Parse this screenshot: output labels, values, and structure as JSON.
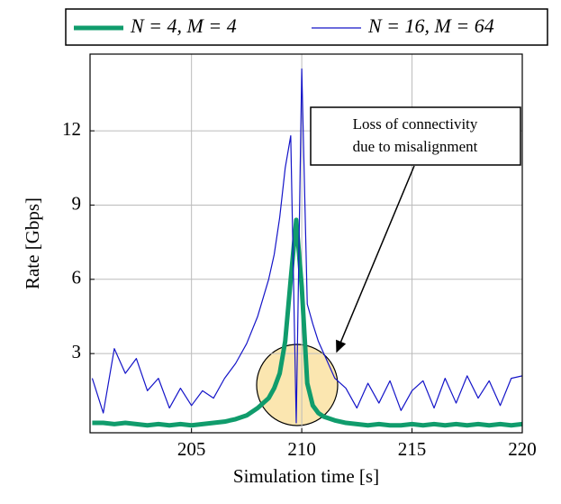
{
  "chart_data": {
    "type": "line",
    "x_label": "Simulation time [s]",
    "y_label": "Rate [Gbps]",
    "x": [
      200.5,
      201,
      201.5,
      202,
      202.5,
      203,
      203.5,
      204,
      204.5,
      205,
      205.5,
      206,
      206.5,
      207,
      207.5,
      208,
      208.5,
      208.75,
      209,
      209.25,
      209.5,
      209.75,
      210,
      210.25,
      210.5,
      210.75,
      211,
      211.5,
      212,
      212.5,
      213,
      213.5,
      214,
      214.5,
      215,
      215.5,
      216,
      216.5,
      217,
      217.5,
      218,
      218.5,
      219,
      219.5,
      220
    ],
    "series": [
      {
        "name": "N = 4, M = 4",
        "color": "#109c6c",
        "width": 5,
        "values": [
          0.2,
          0.2,
          0.15,
          0.2,
          0.15,
          0.1,
          0.15,
          0.1,
          0.15,
          0.1,
          0.15,
          0.2,
          0.25,
          0.35,
          0.5,
          0.8,
          1.2,
          1.6,
          2.2,
          3.5,
          6.0,
          8.4,
          5.7,
          1.8,
          0.9,
          0.6,
          0.45,
          0.3,
          0.2,
          0.15,
          0.1,
          0.15,
          0.1,
          0.1,
          0.15,
          0.1,
          0.15,
          0.1,
          0.15,
          0.1,
          0.15,
          0.1,
          0.15,
          0.1,
          0.15
        ]
      },
      {
        "name": "N = 16, M = 64",
        "color": "#1414c8",
        "width": 1.2,
        "values": [
          2.0,
          0.6,
          3.2,
          2.2,
          2.8,
          1.5,
          2.0,
          0.8,
          1.6,
          0.9,
          1.5,
          1.2,
          2.0,
          2.6,
          3.4,
          4.5,
          6.0,
          7.0,
          8.5,
          10.5,
          11.8,
          0.2,
          14.5,
          5.0,
          4.2,
          3.5,
          3.0,
          2.0,
          1.6,
          0.8,
          1.8,
          1.0,
          1.9,
          0.7,
          1.5,
          1.9,
          0.8,
          2.0,
          1.0,
          2.1,
          1.2,
          1.9,
          0.9,
          2.0,
          2.1
        ]
      }
    ],
    "xlim": [
      200.4,
      220
    ],
    "xticks": [
      205,
      210,
      215,
      220
    ],
    "ylim": [
      -0.2,
      15.1
    ],
    "yticks": [
      3,
      6,
      9,
      12
    ],
    "grid": true,
    "legend": "top",
    "annotation": {
      "lines": [
        "Loss of connectivity",
        "due to misalignment"
      ]
    }
  }
}
